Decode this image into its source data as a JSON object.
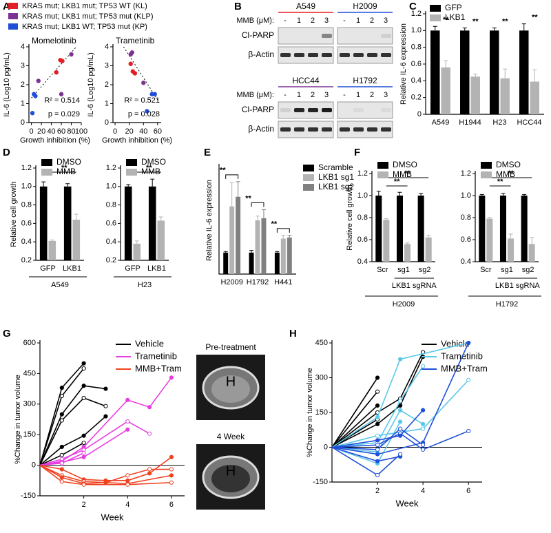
{
  "chart_data": [
    {
      "type": "scatter",
      "panel": "A",
      "title": "Momelotinib",
      "xlabel": "Growth inhibition (%)",
      "ylabel": "IL-6 (Log10 pg/mL)",
      "xlim": [
        -5,
        100
      ],
      "xticks": [
        0,
        20,
        40,
        60,
        80,
        100
      ],
      "ylim": [
        0,
        4
      ],
      "yticks": [
        0,
        1,
        2,
        3,
        4
      ],
      "series": [
        {
          "name": "KRAS mut; LKB1 mut; TP53 WT (KL)",
          "color": "#e31e24",
          "x": [
            50,
            58,
            62
          ],
          "values": [
            2.65,
            3.3,
            3.25
          ]
        },
        {
          "name": "KRAS mut; LKB1 mut; TP53 mut (KLP)",
          "color": "#7b3294",
          "x": [
            80,
            14,
            60
          ],
          "values": [
            3.6,
            2.2,
            1.5
          ]
        },
        {
          "name": "KRAS mut; LKB1 WT; TP53 mut (KP)",
          "color": "#1f4ed8",
          "x": [
            5,
            8,
            2
          ],
          "values": [
            1.5,
            1.4,
            0.5
          ]
        }
      ],
      "fit": {
        "x": [
          0,
          90
        ],
        "y": [
          1.3,
          4.0
        ]
      },
      "annotations": [
        "R² = 0.514",
        "p = 0.029"
      ]
    },
    {
      "type": "scatter",
      "title": "Trametinib",
      "xlabel": "Growth inhibition (%)",
      "ylabel": "IL-6 (Log10 pg/mL)",
      "xlim": [
        -3,
        65
      ],
      "xticks": [
        0,
        20,
        40,
        60
      ],
      "ylim": [
        0,
        4
      ],
      "yticks": [
        0,
        1,
        2,
        3,
        4
      ],
      "series": [
        {
          "color": "#e31e24",
          "x": [
            22,
            25,
            28
          ],
          "values": [
            3.1,
            2.7,
            2.6
          ]
        },
        {
          "color": "#7b3294",
          "x": [
            22,
            24,
            40
          ],
          "values": [
            3.6,
            3.7,
            2.1
          ]
        },
        {
          "color": "#1f4ed8",
          "x": [
            52,
            56,
            45
          ],
          "values": [
            1.5,
            1.5,
            0.6
          ]
        }
      ],
      "fit": {
        "x": [
          12,
          60
        ],
        "y": [
          4.0,
          1.2
        ]
      },
      "annotations": [
        "R² = 0.521",
        "p = 0.028"
      ]
    },
    {
      "type": "bar",
      "panel": "C",
      "ylabel": "Relative IL-6 expression",
      "categories": [
        "A549",
        "H1944",
        "H23",
        "HCC44"
      ],
      "category_colors": [
        "#e31e24",
        "#e31e24",
        "#7b3294",
        "#7b3294"
      ],
      "ylim": [
        0,
        1.2
      ],
      "yticks": [
        0,
        0.2,
        0.4,
        0.6,
        0.8,
        {
          "value": 1,
          "label": "1.0"
        },
        1.2
      ],
      "series": [
        {
          "name": "GFP",
          "color": "#000000",
          "values": [
            1,
            1,
            1,
            1
          ],
          "errors": [
            0.05,
            0.03,
            0.03,
            0.08
          ]
        },
        {
          "name": "LKB1",
          "color": "#b3b3b3",
          "values": [
            0.56,
            0.45,
            0.43,
            0.39
          ],
          "errors": [
            0.08,
            0.03,
            0.11,
            0.14
          ]
        }
      ],
      "significance": [
        "**",
        "**",
        "**",
        "**"
      ]
    },
    {
      "type": "bar",
      "panel": "D",
      "ylabel": "Relative cell growth",
      "categories": [
        "GFP",
        "LKB1"
      ],
      "group_label": "A549",
      "group_color": "#e31e24",
      "ylim": [
        0.2,
        1.2
      ],
      "yticks": [
        0.2,
        0.4,
        0.6,
        0.8,
        {
          "value": 1,
          "label": "1.0"
        },
        1.2
      ],
      "series": [
        {
          "name": "DMSO",
          "color": "#000000",
          "values": [
            1,
            1
          ],
          "errors": [
            0.05,
            0.03
          ]
        },
        {
          "name": "MMB",
          "color": "#b3b3b3",
          "values": [
            0.41,
            0.64
          ],
          "errors": [
            0.01,
            0.06
          ]
        }
      ],
      "significance": [
        "**"
      ]
    },
    {
      "type": "bar",
      "categories": [
        "GFP",
        "LKB1"
      ],
      "group_label": "H23",
      "group_color": "#7b3294",
      "ylim": [
        0.2,
        1.2
      ],
      "yticks": [
        0.2,
        0.4,
        0.6,
        0.8,
        {
          "value": 1,
          "label": "1.0"
        },
        1.2
      ],
      "series": [
        {
          "name": "DMSO",
          "color": "#000000",
          "values": [
            1,
            1
          ],
          "errors": [
            0.02,
            0.08
          ]
        },
        {
          "name": "MMB",
          "color": "#b3b3b3",
          "values": [
            0.38,
            0.63
          ],
          "errors": [
            0.03,
            0.04
          ]
        }
      ],
      "significance": [
        "**"
      ]
    },
    {
      "type": "bar",
      "panel": "E",
      "ylabel": "Relative IL-6 expression",
      "categories": [
        "H2009",
        "H1792",
        "H441"
      ],
      "category_colors": [
        "#1f4ed8",
        "#1f4ed8",
        "#1f4ed8"
      ],
      "ylim": [
        0,
        5
      ],
      "series": [
        {
          "name": "Scramble",
          "color": "#000000",
          "values": [
            1,
            1,
            1
          ],
          "errors": [
            0.05,
            0.1,
            0.05
          ]
        },
        {
          "name": "LKB1 sg1",
          "color": "#b3b3b3",
          "values": [
            3.15,
            2.5,
            1.65
          ],
          "errors": [
            1.1,
            0.2,
            0.15
          ]
        },
        {
          "name": "LKB1 sg2",
          "color": "#808080",
          "values": [
            3.6,
            2.6,
            1.7
          ],
          "errors": [
            0.7,
            0.4,
            0.1
          ]
        }
      ],
      "significance": [
        "**",
        "**",
        "**"
      ]
    },
    {
      "type": "bar",
      "panel": "F",
      "ylabel": "Relative cell growth",
      "categories": [
        "Scr",
        "sg1",
        "sg2"
      ],
      "subgroup_label": "LKB1 sgRNA",
      "group_label": "H2009",
      "group_color": "#1f4ed8",
      "ylim": [
        0.4,
        1.2
      ],
      "yticks": [
        0.4,
        0.6,
        0.8,
        {
          "value": 1,
          "label": "1.0"
        },
        1.2
      ],
      "series": [
        {
          "name": "DMSO",
          "color": "#000000",
          "values": [
            1,
            1,
            1
          ],
          "errors": [
            0.04,
            0.03,
            0.02
          ]
        },
        {
          "name": "MMB",
          "color": "#b3b3b3",
          "values": [
            0.78,
            0.56,
            0.62
          ],
          "errors": [
            0.01,
            0.01,
            0.02
          ]
        }
      ],
      "significance": [
        "**",
        "**"
      ]
    },
    {
      "type": "bar",
      "categories": [
        "Scr",
        "sg1",
        "sg2"
      ],
      "subgroup_label": "LKB1 sgRNA",
      "group_label": "H1792",
      "group_color": "#1f4ed8",
      "ylim": [
        0.4,
        1.2
      ],
      "yticks": [
        0.4,
        0.6,
        0.8,
        {
          "value": 1,
          "label": "1.0"
        },
        1.2
      ],
      "series": [
        {
          "name": "DMSO",
          "color": "#000000",
          "values": [
            1,
            1,
            1
          ],
          "errors": [
            0.01,
            0.02,
            0.01
          ]
        },
        {
          "name": "MMB",
          "color": "#b3b3b3",
          "values": [
            0.79,
            0.61,
            0.56
          ],
          "errors": [
            0.01,
            0.04,
            0.06
          ]
        }
      ],
      "significance": [
        "**",
        "**"
      ]
    },
    {
      "type": "line",
      "panel": "G",
      "xlabel": "Week",
      "ylabel": "%Change in tumor volume",
      "xlim": [
        0,
        6.6
      ],
      "xticks": [
        2,
        4,
        6
      ],
      "ylim": [
        -150,
        600
      ],
      "yticks": [
        -150,
        0,
        150,
        300,
        450,
        600
      ],
      "series": [
        {
          "name": "Vehicle",
          "color": "#000000",
          "lines": [
            {
              "x": [
                0,
                1,
                2
              ],
              "values": [
                0,
                380,
                500
              ]
            },
            {
              "x": [
                0,
                1,
                2
              ],
              "values": [
                0,
                340,
                475
              ]
            },
            {
              "x": [
                0,
                1,
                2,
                3
              ],
              "values": [
                0,
                250,
                390,
                375
              ]
            },
            {
              "x": [
                0,
                1,
                2,
                3
              ],
              "values": [
                0,
                220,
                330,
                290
              ]
            },
            {
              "x": [
                0,
                1,
                2,
                3
              ],
              "values": [
                0,
                90,
                145,
                240
              ]
            },
            {
              "x": [
                0,
                1,
                2
              ],
              "values": [
                0,
                50,
                110
              ]
            }
          ]
        },
        {
          "name": "Trametinib",
          "color": "#e83de0",
          "lines": [
            {
              "x": [
                0,
                1,
                2,
                4,
                5,
                6
              ],
              "values": [
                0,
                20,
                90,
                320,
                285,
                430
              ]
            },
            {
              "x": [
                0,
                1,
                2,
                4,
                5
              ],
              "values": [
                0,
                30,
                75,
                215,
                155
              ]
            },
            {
              "x": [
                0,
                1,
                2,
                4
              ],
              "values": [
                0,
                15,
                40,
                175
              ]
            },
            {
              "x": [
                0,
                1,
                2
              ],
              "values": [
                0,
                10,
                60
              ]
            }
          ]
        },
        {
          "name": "MMB+Tram",
          "color": "#f0401e",
          "lines": [
            {
              "x": [
                0,
                1,
                2,
                3,
                4,
                5,
                6
              ],
              "values": [
                0,
                -20,
                -70,
                -75,
                -75,
                -40,
                40
              ]
            },
            {
              "x": [
                0,
                1,
                2,
                3,
                4,
                5,
                6
              ],
              "values": [
                0,
                -50,
                -80,
                -85,
                -50,
                -20,
                -20
              ]
            },
            {
              "x": [
                0,
                1,
                2,
                3,
                4,
                6
              ],
              "values": [
                0,
                -60,
                -90,
                -85,
                -90,
                -50
              ]
            },
            {
              "x": [
                0,
                1,
                2,
                4,
                6
              ],
              "values": [
                0,
                -80,
                -95,
                -95,
                -85
              ]
            }
          ]
        }
      ]
    },
    {
      "type": "line",
      "panel": "H",
      "xlabel": "Week",
      "ylabel": "%Change in tumor volume",
      "xlim": [
        0,
        6.6
      ],
      "xticks": [
        2,
        4,
        6
      ],
      "ylim": [
        -150,
        450
      ],
      "yticks": [
        -150,
        0,
        150,
        300,
        450
      ],
      "series": [
        {
          "name": "Vehicle",
          "color": "#000000",
          "lines": [
            {
              "x": [
                0,
                2
              ],
              "values": [
                0,
                300
              ]
            },
            {
              "x": [
                0,
                2
              ],
              "values": [
                0,
                240
              ]
            },
            {
              "x": [
                0,
                2
              ],
              "values": [
                0,
                180
              ]
            },
            {
              "x": [
                0,
                2,
                3,
                4
              ],
              "values": [
                0,
                150,
                210,
                410
              ]
            },
            {
              "x": [
                0,
                2,
                3,
                4
              ],
              "values": [
                0,
                100,
                180,
                390
              ]
            },
            {
              "x": [
                0,
                2
              ],
              "values": [
                0,
                120
              ]
            }
          ]
        },
        {
          "name": "Trametinib",
          "color": "#5bc8e8",
          "lines": [
            {
              "x": [
                0,
                2,
                3,
                6
              ],
              "values": [
                0,
                130,
                380,
                450
              ]
            },
            {
              "x": [
                0,
                2,
                4,
                6
              ],
              "values": [
                0,
                50,
                80,
                290
              ]
            },
            {
              "x": [
                0,
                2,
                3,
                4
              ],
              "values": [
                0,
                -20,
                160,
                100
              ]
            },
            {
              "x": [
                0,
                2,
                3,
                4
              ],
              "values": [
                0,
                20,
                200,
                350
              ]
            },
            {
              "x": [
                0,
                2,
                3
              ],
              "values": [
                0,
                -70,
                110
              ]
            }
          ]
        },
        {
          "name": "MMB+Tram",
          "color": "#1f4fd8",
          "lines": [
            {
              "x": [
                0,
                2,
                4,
                6
              ],
              "values": [
                0,
                -30,
                20,
                450
              ]
            },
            {
              "x": [
                0,
                2,
                3,
                4
              ],
              "values": [
                0,
                -10,
                80,
                10
              ]
            },
            {
              "x": [
                0,
                2,
                3
              ],
              "values": [
                0,
                -60,
                -40
              ]
            },
            {
              "x": [
                0,
                2,
                3,
                4,
                6
              ],
              "values": [
                0,
                10,
                60,
                -10,
                70
              ]
            },
            {
              "x": [
                0,
                2,
                3,
                4
              ],
              "values": [
                0,
                30,
                50,
                160
              ]
            },
            {
              "x": [
                0,
                2,
                3
              ],
              "values": [
                0,
                -120,
                -30
              ]
            }
          ]
        }
      ]
    }
  ],
  "blots": {
    "panel": "B",
    "dose_label": "MMB (μM):",
    "doses": [
      "-",
      "1",
      "2",
      "3"
    ],
    "rows": [
      "Cl-PARP",
      "β-Actin"
    ],
    "panels": [
      [
        {
          "name": "A549",
          "color": "#e31e24"
        },
        {
          "name": "H2009",
          "color": "#1f4ed8"
        }
      ],
      [
        {
          "name": "HCC44",
          "color": "#7b3294"
        },
        {
          "name": "H1792",
          "color": "#1f4ed8"
        }
      ]
    ]
  },
  "mri": [
    {
      "caption": "Pre-treatment",
      "label": "H"
    },
    {
      "caption": "4 Week",
      "label": "H"
    }
  ]
}
